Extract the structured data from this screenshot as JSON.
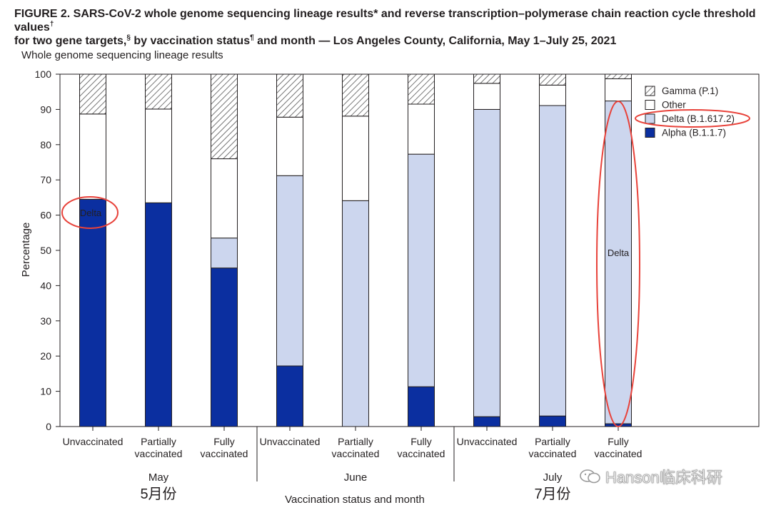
{
  "figure": {
    "title_line1": "FIGURE 2. SARS-CoV-2 whole genome sequencing lineage results* and reverse transcription–polymerase chain reaction cycle threshold values",
    "title_line1_mark": "†",
    "title_line2_a": "for two gene targets,",
    "title_line2_mark1": "§",
    "title_line2_b": " by vaccination status",
    "title_line2_mark2": "¶",
    "title_line2_c": " and month — Los Angeles County, California, May 1–July 25, 2021"
  },
  "chart_data": {
    "type": "bar",
    "stacked": true,
    "subtitle": "Whole genome sequencing lineage results",
    "ylabel": "Percentage",
    "xlabel": "Vaccination status and month",
    "ylim": [
      0,
      100
    ],
    "yticks": [
      0,
      10,
      20,
      30,
      40,
      50,
      60,
      70,
      80,
      90,
      100
    ],
    "grid": false,
    "legend_position": "top-right",
    "categories": [
      "Unvaccinated",
      "Partially vaccinated",
      "Fully vaccinated",
      "Unvaccinated",
      "Partially vaccinated",
      "Fully vaccinated",
      "Unvaccinated",
      "Partially vaccinated",
      "Fully vaccinated"
    ],
    "category_lines": [
      [
        "Unvaccinated"
      ],
      [
        "Partially",
        "vaccinated"
      ],
      [
        "Fully",
        "vaccinated"
      ],
      [
        "Unvaccinated"
      ],
      [
        "Partially",
        "vaccinated"
      ],
      [
        "Fully",
        "vaccinated"
      ],
      [
        "Unvaccinated"
      ],
      [
        "Partially",
        "vaccinated"
      ],
      [
        "Fully",
        "vaccinated"
      ]
    ],
    "groups": [
      {
        "label": "May",
        "annotation": "5月份"
      },
      {
        "label": "June",
        "annotation": ""
      },
      {
        "label": "July",
        "annotation": "7月份"
      }
    ],
    "series": [
      {
        "name": "Alpha (B.1.1.7)",
        "color": "#0b2fa0",
        "values": [
          64.5,
          63.5,
          45.0,
          17.2,
          0.0,
          11.3,
          2.8,
          3.0,
          0.8
        ]
      },
      {
        "name": "Delta (B.1.617.2)",
        "color": "#ccd6ee",
        "values": [
          0.0,
          0.0,
          8.5,
          54.0,
          64.1,
          66.0,
          87.2,
          88.1,
          91.6
        ]
      },
      {
        "name": "Other",
        "color": "#ffffff",
        "values": [
          24.2,
          26.6,
          22.5,
          16.6,
          24.0,
          14.2,
          7.4,
          5.8,
          6.3
        ]
      },
      {
        "name": "Gamma (P.1)",
        "color": "hatch",
        "values": [
          11.3,
          9.9,
          24.0,
          12.2,
          11.9,
          8.5,
          2.6,
          3.1,
          1.3
        ]
      }
    ],
    "legend_order": [
      "Gamma (P.1)",
      "Other",
      "Delta (B.1.617.2)",
      "Alpha (B.1.1.7)"
    ],
    "annotations": [
      {
        "text": "Delta",
        "target": "May Unvaccinated bar",
        "color": "#e8423a"
      },
      {
        "text": "Delta",
        "target": "July Fully vaccinated bar",
        "color": "#e8423a"
      }
    ]
  },
  "watermark": {
    "text": "Hanson临床科研",
    "icon": "wechat-icon"
  }
}
